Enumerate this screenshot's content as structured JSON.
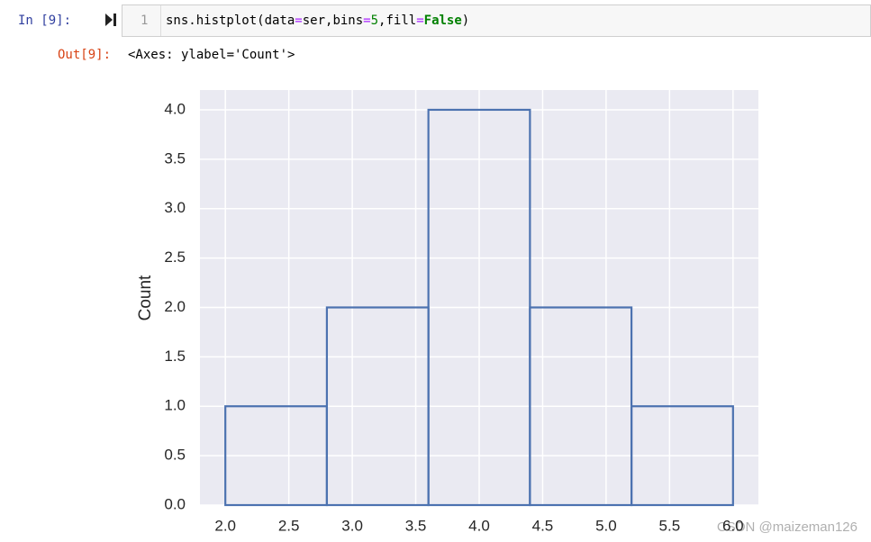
{
  "cell": {
    "prompt_in": "In [9]:",
    "line_number": "1",
    "code": [
      "sns.histplot(data",
      "=",
      "ser,bins",
      "=",
      "5",
      ",fill",
      "=",
      "False",
      ")"
    ],
    "prompt_out": "Out[9]:",
    "output": "<Axes: ylabel='Count'>"
  },
  "watermark": "CSDN @maizeman126",
  "chart_data": {
    "type": "histogram",
    "ylabel": "Count",
    "bins": [
      2.0,
      2.8,
      3.6,
      4.4,
      5.2,
      6.0
    ],
    "values": [
      1,
      2,
      4,
      2,
      1
    ],
    "color": "#4c72b0",
    "fill": false,
    "xlim": [
      1.8,
      6.2
    ],
    "ylim": [
      0,
      4.2
    ],
    "xticks": [
      {
        "value": 2,
        "label": "2.0"
      },
      2.5,
      {
        "value": 3,
        "label": "3.0"
      },
      3.5,
      {
        "value": 4,
        "label": "4.0"
      },
      4.5,
      {
        "value": 5,
        "label": "5.0"
      },
      5.5,
      {
        "value": 6,
        "label": "6.0"
      }
    ],
    "yticks": [
      {
        "value": 0,
        "label": "0.0"
      },
      0.5,
      {
        "value": 1,
        "label": "1.0"
      },
      1.5,
      {
        "value": 2,
        "label": "2.0"
      },
      2.5,
      {
        "value": 3,
        "label": "3.0"
      },
      3.5,
      {
        "value": 4,
        "label": "4.0"
      }
    ],
    "grid": true
  }
}
